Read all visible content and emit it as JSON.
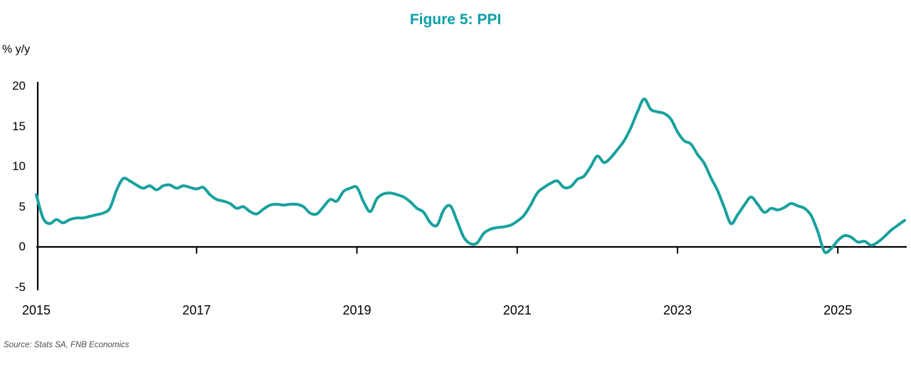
{
  "chart_data": {
    "type": "line",
    "title": "Figure 5: PPI",
    "unit_label": "% y/y",
    "source": "Source: Stats SA, FNB Economics",
    "title_color": "#0b9fa8",
    "axis_color": "#000000",
    "x_ticks": [
      2015,
      2017,
      2019,
      2021,
      2023,
      2025
    ],
    "y_ticks": [
      -5,
      0,
      5,
      10,
      15,
      20
    ],
    "ylim": [
      -5,
      20
    ],
    "grid": false,
    "legend": "none",
    "series": [
      {
        "name": "PPI",
        "color": "#18a19e",
        "frequency": "monthly",
        "start": "2015-01",
        "end": "2025-11",
        "values": [
          6.5,
          3.6,
          2.9,
          3.4,
          3.0,
          3.4,
          3.6,
          3.6,
          3.8,
          4.0,
          4.2,
          4.8,
          7.0,
          8.5,
          8.2,
          7.7,
          7.3,
          7.6,
          7.1,
          7.6,
          7.7,
          7.3,
          7.6,
          7.4,
          7.2,
          7.4,
          6.5,
          5.9,
          5.7,
          5.4,
          4.8,
          5.0,
          4.4,
          4.1,
          4.7,
          5.2,
          5.3,
          5.2,
          5.3,
          5.3,
          5.0,
          4.2,
          4.1,
          5.0,
          5.9,
          5.7,
          6.9,
          7.3,
          7.4,
          5.6,
          4.4,
          6.0,
          6.6,
          6.7,
          6.5,
          6.2,
          5.6,
          4.8,
          4.3,
          3.0,
          2.7,
          4.6,
          5.1,
          3.2,
          1.2,
          0.4,
          0.5,
          1.7,
          2.2,
          2.4,
          2.5,
          2.7,
          3.2,
          3.9,
          5.2,
          6.7,
          7.4,
          7.9,
          8.2,
          7.4,
          7.5,
          8.4,
          8.8,
          10.0,
          11.3,
          10.5,
          11.1,
          12.1,
          13.2,
          14.8,
          16.8,
          18.4,
          17.1,
          16.8,
          16.6,
          15.9,
          14.3,
          13.2,
          12.8,
          11.5,
          10.4,
          8.6,
          7.0,
          4.9,
          2.9,
          4.0,
          5.2,
          6.2,
          5.3,
          4.3,
          4.8,
          4.6,
          4.9,
          5.4,
          5.1,
          4.8,
          3.9,
          1.9,
          -0.6,
          -0.2,
          0.8,
          1.4,
          1.2,
          0.6,
          0.7,
          0.2,
          0.6,
          1.3,
          2.1,
          2.7,
          3.3
        ]
      }
    ]
  }
}
